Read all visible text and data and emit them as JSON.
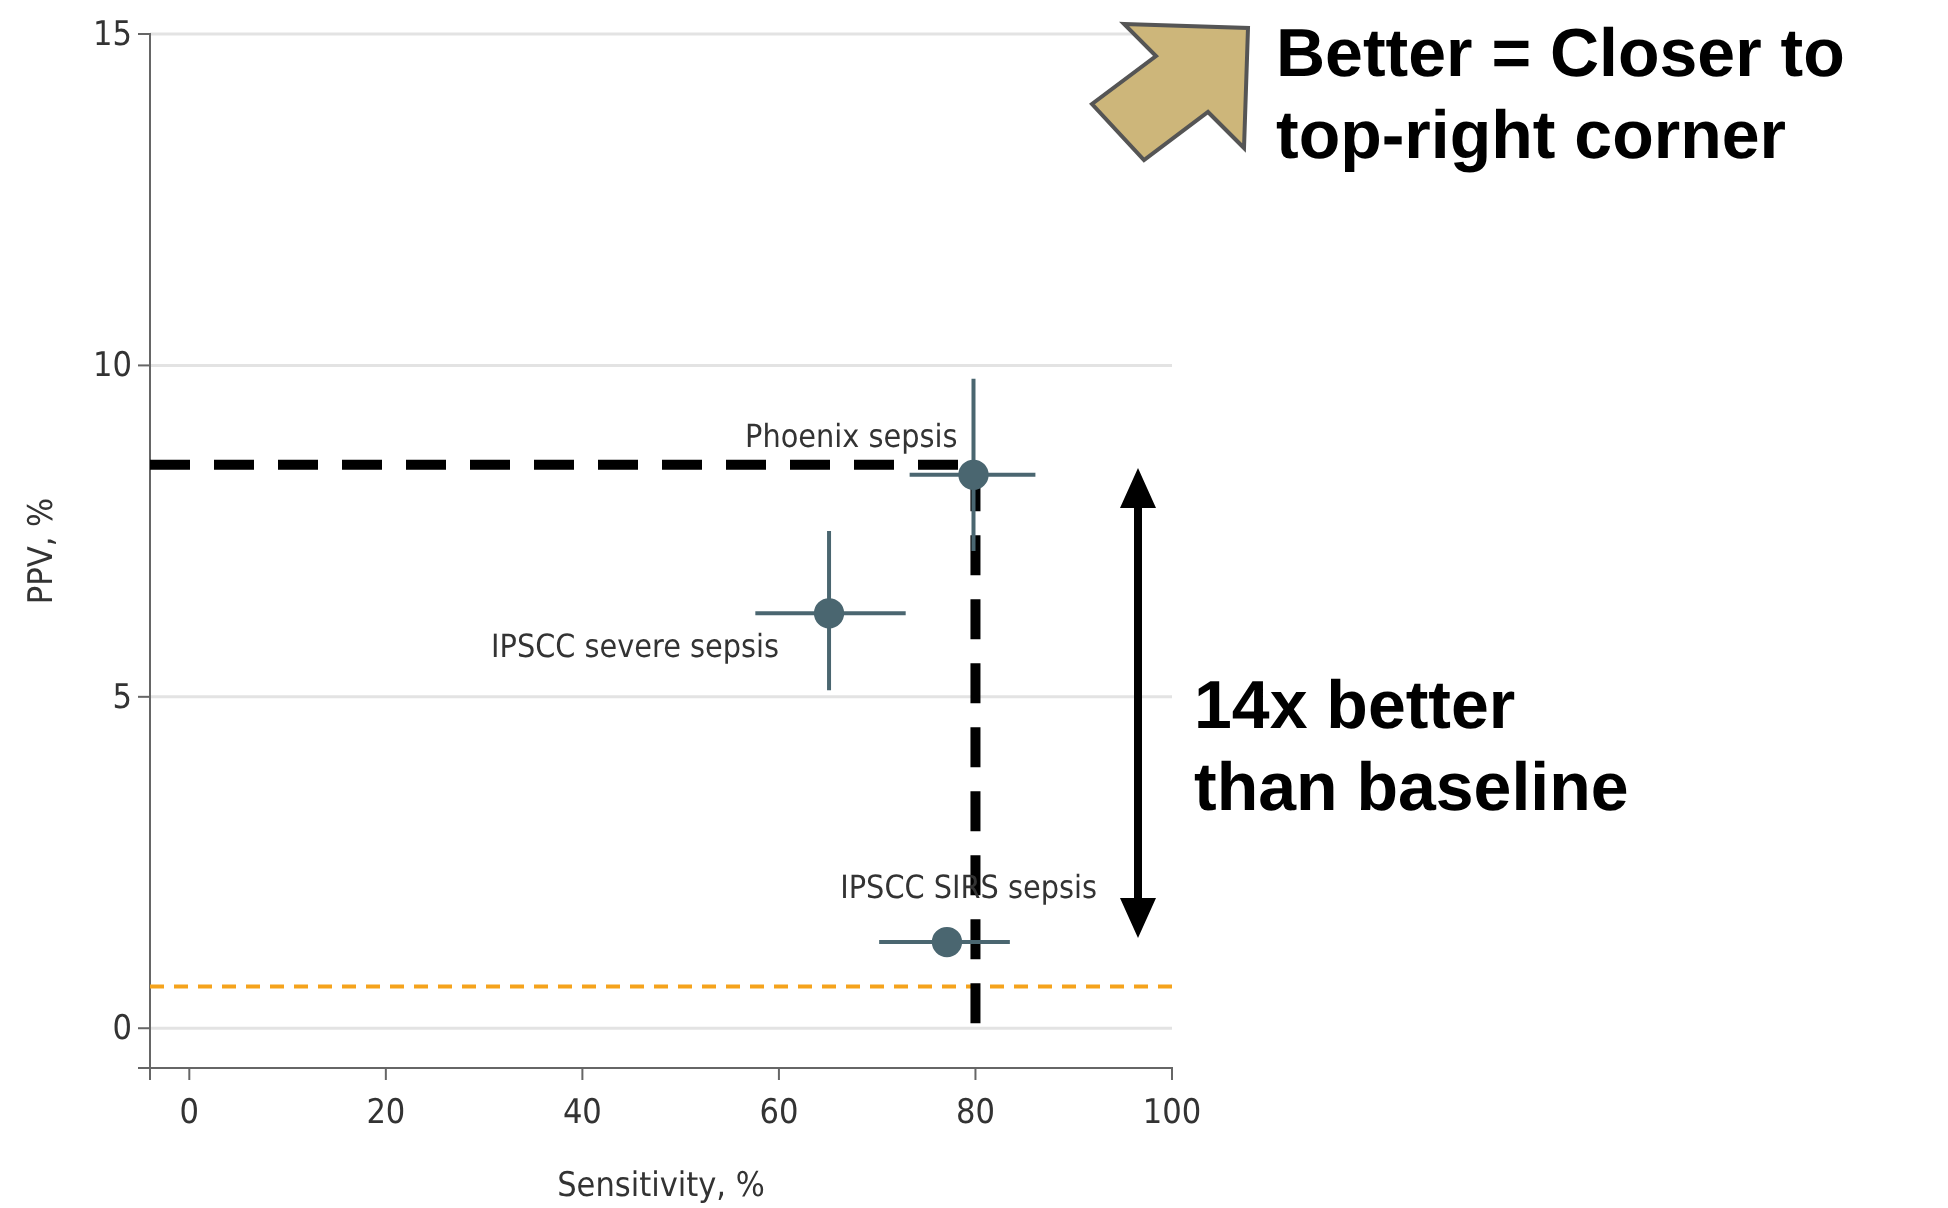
{
  "chart_data": {
    "type": "scatter",
    "xlabel": "Sensitivity, %",
    "ylabel": "PPV, %",
    "xlim": [
      -4,
      100
    ],
    "xticks": [
      0,
      20,
      40,
      60,
      80,
      100
    ],
    "ylim": [
      -0.6,
      15
    ],
    "yticks": [
      0,
      5,
      10,
      15
    ],
    "grid": "y",
    "series": [
      {
        "name": "Phoenix sepsis",
        "marker": "circle",
        "color": "#4a6670",
        "x": [
          79.8
        ],
        "values": [
          8.35
        ],
        "errors": [
          [
            7.2,
            9.8
          ]
        ],
        "xerrors": [
          [
            73.3,
            86.1
          ]
        ]
      },
      {
        "name": "IPSCC severe sepsis",
        "marker": "circle",
        "color": "#4a6670",
        "x": [
          65.1
        ],
        "values": [
          6.26
        ],
        "errors": [
          [
            5.1,
            7.5
          ]
        ],
        "xerrors": [
          [
            57.6,
            72.9
          ]
        ]
      },
      {
        "name": "IPSCC SIRS sepsis",
        "marker": "circle",
        "color": "#4a6670",
        "x": [
          77.1
        ],
        "values": [
          1.3
        ],
        "xerrors": [
          [
            70.2,
            83.5
          ]
        ]
      },
      {
        "type": "line",
        "marker": "none",
        "color": "#000000",
        "line_style": "dashed",
        "x": [
          -4,
          80,
          80
        ],
        "values": [
          8.5,
          8.5,
          0
        ]
      }
    ],
    "ref_lines": [
      {
        "axis": "y",
        "value": 0.63,
        "color": "#f5a31c",
        "line_style": "dashed"
      }
    ],
    "annotations": [
      "Better = Closer to\ntop-right corner",
      "14x better\nthan baseline"
    ]
  }
}
